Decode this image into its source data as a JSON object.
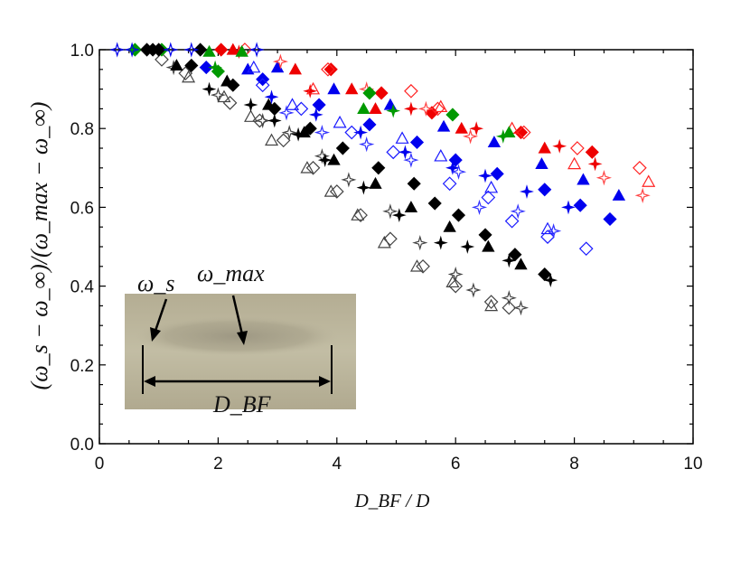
{
  "chart_data": {
    "type": "scatter",
    "title": "",
    "xlabel": "D_BF / D",
    "ylabel": "(ω_s − ω_∞)/(ω_max − ω_∞)",
    "xlim": [
      0,
      10
    ],
    "ylim": [
      0,
      1.0
    ],
    "x_ticks": [
      "0",
      "2",
      "4",
      "6",
      "8",
      "10"
    ],
    "y_ticks": [
      "0.0",
      "0.2",
      "0.4",
      "0.6",
      "0.8",
      "1.0"
    ],
    "grid": false,
    "legend": "none",
    "inset": {
      "description_labels": [
        "ω_s",
        "ω_max",
        "D_BF"
      ]
    },
    "series": [
      {
        "name": "open-diamond-gray",
        "color": "#444444",
        "marker": "diamond-open",
        "points": [
          [
            1.05,
            0.975
          ],
          [
            1.45,
            0.94
          ],
          [
            2.2,
            0.865
          ],
          [
            2.7,
            0.82
          ],
          [
            3.1,
            0.77
          ],
          [
            3.6,
            0.7
          ],
          [
            4.0,
            0.64
          ],
          [
            4.4,
            0.58
          ],
          [
            4.9,
            0.52
          ],
          [
            5.45,
            0.45
          ],
          [
            6.0,
            0.4
          ],
          [
            6.6,
            0.36
          ],
          [
            6.9,
            0.345
          ]
        ]
      },
      {
        "name": "open-triangle-gray",
        "color": "#444444",
        "marker": "triangle-open",
        "points": [
          [
            1.5,
            0.93
          ],
          [
            2.1,
            0.88
          ],
          [
            2.55,
            0.83
          ],
          [
            2.9,
            0.77
          ],
          [
            3.5,
            0.7
          ],
          [
            3.9,
            0.64
          ],
          [
            4.35,
            0.58
          ],
          [
            4.8,
            0.51
          ],
          [
            5.35,
            0.45
          ],
          [
            5.95,
            0.41
          ],
          [
            6.6,
            0.35
          ]
        ]
      },
      {
        "name": "open-star-gray",
        "color": "#444444",
        "marker": "star-open",
        "points": [
          [
            1.25,
            0.955
          ],
          [
            2.0,
            0.885
          ],
          [
            2.75,
            0.82
          ],
          [
            3.2,
            0.79
          ],
          [
            3.75,
            0.73
          ],
          [
            4.2,
            0.67
          ],
          [
            4.9,
            0.59
          ],
          [
            5.4,
            0.51
          ],
          [
            6.0,
            0.43
          ],
          [
            6.3,
            0.39
          ],
          [
            6.9,
            0.37
          ],
          [
            7.1,
            0.345
          ]
        ]
      },
      {
        "name": "filled-diamond-black",
        "color": "#000000",
        "marker": "diamond-filled",
        "points": [
          [
            0.9,
            1.0
          ],
          [
            1.55,
            0.96
          ],
          [
            2.25,
            0.91
          ],
          [
            2.95,
            0.85
          ],
          [
            3.55,
            0.8
          ],
          [
            4.1,
            0.75
          ],
          [
            4.7,
            0.7
          ],
          [
            5.3,
            0.66
          ],
          [
            5.65,
            0.61
          ],
          [
            6.05,
            0.58
          ],
          [
            6.5,
            0.53
          ],
          [
            7.0,
            0.48
          ],
          [
            7.5,
            0.43
          ]
        ]
      },
      {
        "name": "filled-triangle-black",
        "color": "#000000",
        "marker": "triangle-filled",
        "points": [
          [
            1.3,
            0.96
          ],
          [
            2.15,
            0.92
          ],
          [
            2.85,
            0.86
          ],
          [
            3.45,
            0.79
          ],
          [
            3.95,
            0.72
          ],
          [
            4.65,
            0.66
          ],
          [
            5.25,
            0.6
          ],
          [
            5.9,
            0.55
          ],
          [
            6.55,
            0.5
          ],
          [
            7.1,
            0.455
          ]
        ]
      },
      {
        "name": "filled-star-black",
        "color": "#000000",
        "marker": "star-filled",
        "points": [
          [
            1.85,
            0.9
          ],
          [
            2.55,
            0.86
          ],
          [
            2.95,
            0.82
          ],
          [
            3.35,
            0.785
          ],
          [
            3.8,
            0.72
          ],
          [
            4.45,
            0.65
          ],
          [
            5.05,
            0.58
          ],
          [
            5.75,
            0.51
          ],
          [
            6.2,
            0.5
          ],
          [
            6.9,
            0.465
          ],
          [
            7.6,
            0.415
          ]
        ]
      },
      {
        "name": "filled-diamond-blue",
        "color": "#0000ee",
        "marker": "diamond-filled",
        "points": [
          [
            1.8,
            0.955
          ],
          [
            2.75,
            0.925
          ],
          [
            3.7,
            0.86
          ],
          [
            4.55,
            0.81
          ],
          [
            5.35,
            0.765
          ],
          [
            6.0,
            0.72
          ],
          [
            6.7,
            0.685
          ],
          [
            7.5,
            0.645
          ],
          [
            8.1,
            0.605
          ],
          [
            8.6,
            0.57
          ]
        ]
      },
      {
        "name": "filled-triangle-blue",
        "color": "#0000ee",
        "marker": "triangle-filled",
        "points": [
          [
            2.5,
            0.95
          ],
          [
            3.0,
            0.955
          ],
          [
            3.95,
            0.9
          ],
          [
            4.9,
            0.86
          ],
          [
            5.8,
            0.805
          ],
          [
            6.65,
            0.765
          ],
          [
            7.45,
            0.71
          ],
          [
            8.15,
            0.67
          ],
          [
            8.75,
            0.63
          ]
        ]
      },
      {
        "name": "filled-star-blue",
        "color": "#0000ee",
        "marker": "star-filled",
        "points": [
          [
            2.9,
            0.88
          ],
          [
            3.65,
            0.835
          ],
          [
            4.4,
            0.79
          ],
          [
            5.15,
            0.74
          ],
          [
            5.95,
            0.7
          ],
          [
            6.5,
            0.68
          ],
          [
            7.2,
            0.64
          ],
          [
            7.9,
            0.6
          ]
        ]
      },
      {
        "name": "open-diamond-blue",
        "color": "#1a1aff",
        "marker": "diamond-open",
        "points": [
          [
            2.75,
            0.91
          ],
          [
            3.4,
            0.85
          ],
          [
            4.25,
            0.79
          ],
          [
            4.95,
            0.74
          ],
          [
            5.9,
            0.66
          ],
          [
            6.55,
            0.625
          ],
          [
            6.95,
            0.565
          ],
          [
            7.55,
            0.525
          ],
          [
            8.2,
            0.495
          ]
        ]
      },
      {
        "name": "open-triangle-blue",
        "color": "#1a1aff",
        "marker": "triangle-open",
        "points": [
          [
            2.6,
            0.955
          ],
          [
            3.25,
            0.86
          ],
          [
            4.05,
            0.815
          ],
          [
            5.1,
            0.775
          ],
          [
            5.75,
            0.73
          ],
          [
            6.6,
            0.65
          ],
          [
            7.55,
            0.545
          ]
        ]
      },
      {
        "name": "open-star-blue",
        "color": "#3333ff",
        "marker": "star-open",
        "points": [
          [
            3.15,
            0.84
          ],
          [
            3.75,
            0.79
          ],
          [
            4.5,
            0.76
          ],
          [
            5.25,
            0.72
          ],
          [
            6.05,
            0.69
          ],
          [
            6.4,
            0.6
          ],
          [
            7.05,
            0.59
          ],
          [
            7.65,
            0.54
          ]
        ]
      },
      {
        "name": "filled-diamond-red",
        "color": "#ee0000",
        "marker": "diamond-filled",
        "points": [
          [
            2.05,
            1.0
          ],
          [
            3.9,
            0.95
          ],
          [
            4.75,
            0.89
          ],
          [
            5.6,
            0.84
          ],
          [
            7.1,
            0.79
          ],
          [
            8.3,
            0.74
          ]
        ]
      },
      {
        "name": "filled-triangle-red",
        "color": "#ee0000",
        "marker": "triangle-filled",
        "points": [
          [
            2.25,
            1.0
          ],
          [
            3.3,
            0.95
          ],
          [
            4.25,
            0.9
          ],
          [
            4.65,
            0.85
          ],
          [
            6.1,
            0.8
          ],
          [
            7.5,
            0.75
          ]
        ]
      },
      {
        "name": "filled-star-red",
        "color": "#ee0000",
        "marker": "star-filled",
        "points": [
          [
            2.35,
            0.995
          ],
          [
            3.55,
            0.895
          ],
          [
            5.25,
            0.85
          ],
          [
            6.35,
            0.8
          ],
          [
            7.75,
            0.755
          ],
          [
            8.35,
            0.71
          ]
        ]
      },
      {
        "name": "open-diamond-red",
        "color": "#ff2222",
        "marker": "diamond-open",
        "points": [
          [
            2.45,
            1.0
          ],
          [
            3.85,
            0.95
          ],
          [
            5.25,
            0.895
          ],
          [
            5.7,
            0.85
          ],
          [
            7.15,
            0.79
          ],
          [
            8.05,
            0.75
          ],
          [
            9.1,
            0.7
          ]
        ]
      },
      {
        "name": "open-triangle-red",
        "color": "#ff2222",
        "marker": "triangle-open",
        "points": [
          [
            3.6,
            0.9
          ],
          [
            5.75,
            0.855
          ],
          [
            6.95,
            0.8
          ],
          [
            8.0,
            0.71
          ],
          [
            9.25,
            0.665
          ]
        ]
      },
      {
        "name": "open-star-red",
        "color": "#ff4444",
        "marker": "star-open",
        "points": [
          [
            3.05,
            0.97
          ],
          [
            4.5,
            0.9
          ],
          [
            5.5,
            0.85
          ],
          [
            6.25,
            0.78
          ],
          [
            8.5,
            0.675
          ],
          [
            9.15,
            0.63
          ]
        ]
      },
      {
        "name": "filled-diamond-green",
        "color": "#009900",
        "marker": "diamond-filled",
        "points": [
          [
            0.6,
            1.0
          ],
          [
            1.05,
            1.0
          ],
          [
            2.0,
            0.945
          ],
          [
            4.55,
            0.89
          ],
          [
            5.95,
            0.835
          ]
        ]
      },
      {
        "name": "filled-triangle-green",
        "color": "#009900",
        "marker": "triangle-filled",
        "points": [
          [
            1.85,
            0.995
          ],
          [
            2.4,
            0.995
          ],
          [
            4.45,
            0.85
          ],
          [
            6.9,
            0.79
          ]
        ]
      },
      {
        "name": "filled-star-green",
        "color": "#009900",
        "marker": "star-filled",
        "points": [
          [
            1.95,
            0.955
          ],
          [
            4.95,
            0.845
          ],
          [
            6.8,
            0.78
          ]
        ]
      },
      {
        "name": "top-row-black",
        "color": "#000000",
        "marker": "diamond-filled",
        "points": [
          [
            0.8,
            1.0
          ],
          [
            1.0,
            1.0
          ],
          [
            1.7,
            1.0
          ]
        ]
      },
      {
        "name": "top-row-blue",
        "color": "#0000ee",
        "marker": "star-open",
        "points": [
          [
            0.3,
            1.0
          ],
          [
            0.55,
            1.0
          ],
          [
            1.2,
            1.0
          ],
          [
            1.55,
            1.0
          ],
          [
            2.65,
            1.0
          ]
        ]
      }
    ]
  }
}
